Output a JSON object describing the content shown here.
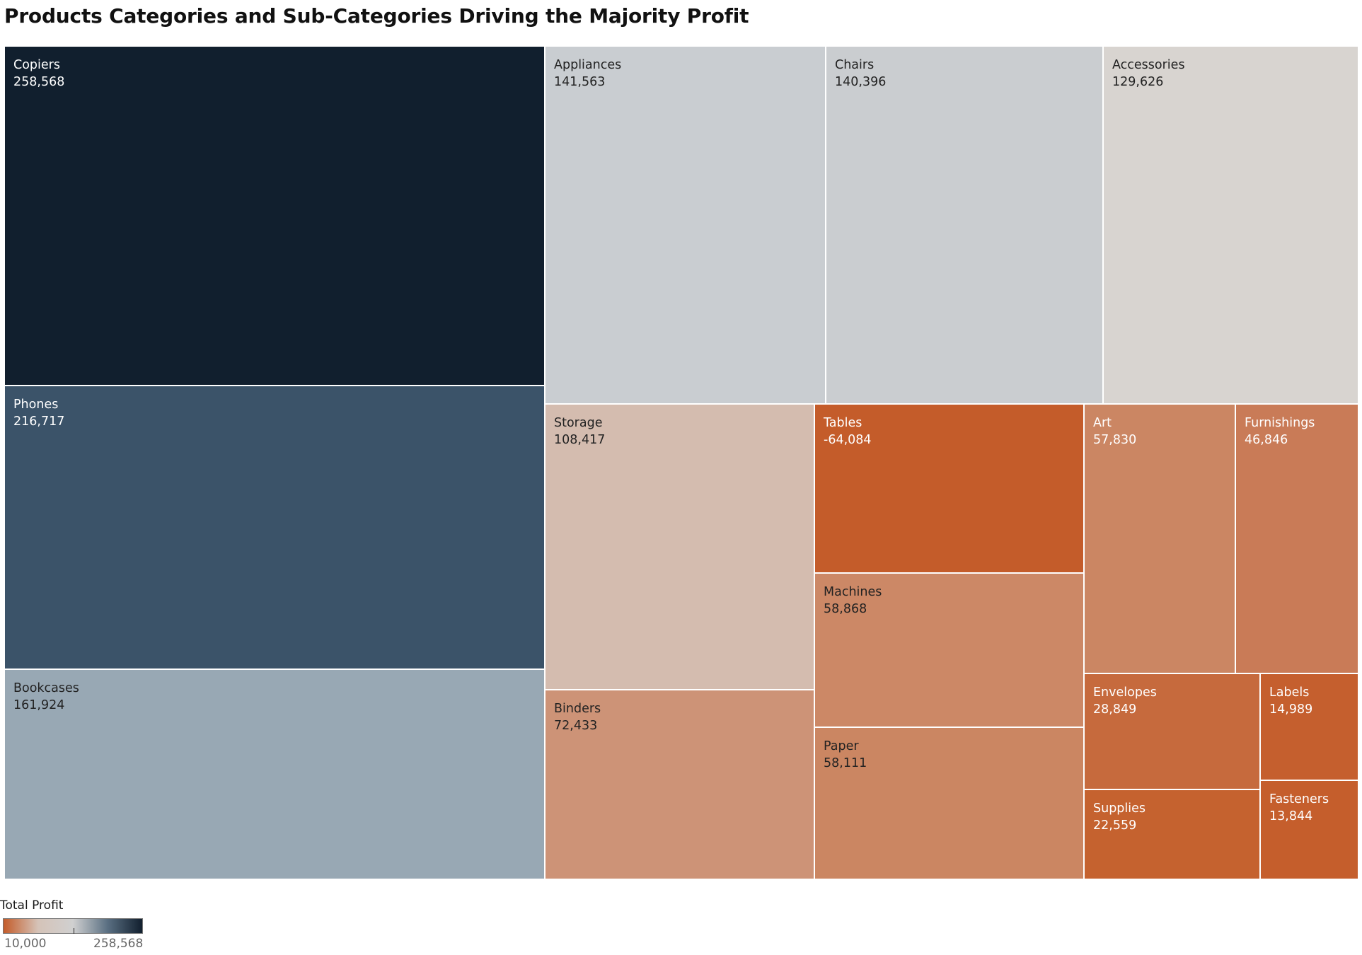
{
  "chart_data": {
    "type": "treemap",
    "title": "Products Categories and Sub-Categories Driving the Majority Profit",
    "measure": "Total Profit",
    "items": [
      {
        "label": "Copiers",
        "value": 258568,
        "display": "258,568",
        "color": "#111f2e",
        "text_color": "#ffffff"
      },
      {
        "label": "Phones",
        "value": 216717,
        "display": "216,717",
        "color": "#3b5369",
        "text_color": "#ffffff"
      },
      {
        "label": "Bookcases",
        "value": 161924,
        "display": "161,924",
        "color": "#98a8b4",
        "text_color": "#222222"
      },
      {
        "label": "Appliances",
        "value": 141563,
        "display": "141,563",
        "color": "#c9cdd1",
        "text_color": "#222222"
      },
      {
        "label": "Chairs",
        "value": 140396,
        "display": "140,396",
        "color": "#cacdd0",
        "text_color": "#222222"
      },
      {
        "label": "Accessories",
        "value": 129626,
        "display": "129,626",
        "color": "#d8d4d0",
        "text_color": "#222222"
      },
      {
        "label": "Storage",
        "value": 108417,
        "display": "108,417",
        "color": "#d4bcaf",
        "text_color": "#222222"
      },
      {
        "label": "Binders",
        "value": 72433,
        "display": "72,433",
        "color": "#cd9377",
        "text_color": "#222222"
      },
      {
        "label": "Tables",
        "value": -64084,
        "display": "-64,084",
        "color": "#c45c2a",
        "text_color": "#ffffff"
      },
      {
        "label": "Machines",
        "value": 58868,
        "display": "58,868",
        "color": "#cc8866",
        "text_color": "#222222"
      },
      {
        "label": "Paper",
        "value": 58111,
        "display": "58,111",
        "color": "#cb8662",
        "text_color": "#222222"
      },
      {
        "label": "Art",
        "value": 57830,
        "display": "57,830",
        "color": "#cb8663",
        "text_color": "#ffffff"
      },
      {
        "label": "Furnishings",
        "value": 46846,
        "display": "46,846",
        "color": "#c97b57",
        "text_color": "#ffffff"
      },
      {
        "label": "Envelopes",
        "value": 28849,
        "display": "28,849",
        "color": "#c66a3d",
        "text_color": "#ffffff"
      },
      {
        "label": "Supplies",
        "value": 22559,
        "display": "22,559",
        "color": "#c5622f",
        "text_color": "#ffffff"
      },
      {
        "label": "Labels",
        "value": 14989,
        "display": "14,989",
        "color": "#c55f2e",
        "text_color": "#ffffff"
      },
      {
        "label": "Fasteners",
        "value": 13844,
        "display": "13,844",
        "color": "#c55e2c",
        "text_color": "#ffffff"
      }
    ]
  },
  "legend": {
    "title": "Total Profit",
    "min_label": "10,000",
    "max_label": "258,568",
    "min_value": 10000,
    "max_value": 258568,
    "gradient_colors": [
      "#c45c2a",
      "#d5c3b8",
      "#d0d0d0",
      "#5a6f82",
      "#111f2e"
    ]
  }
}
